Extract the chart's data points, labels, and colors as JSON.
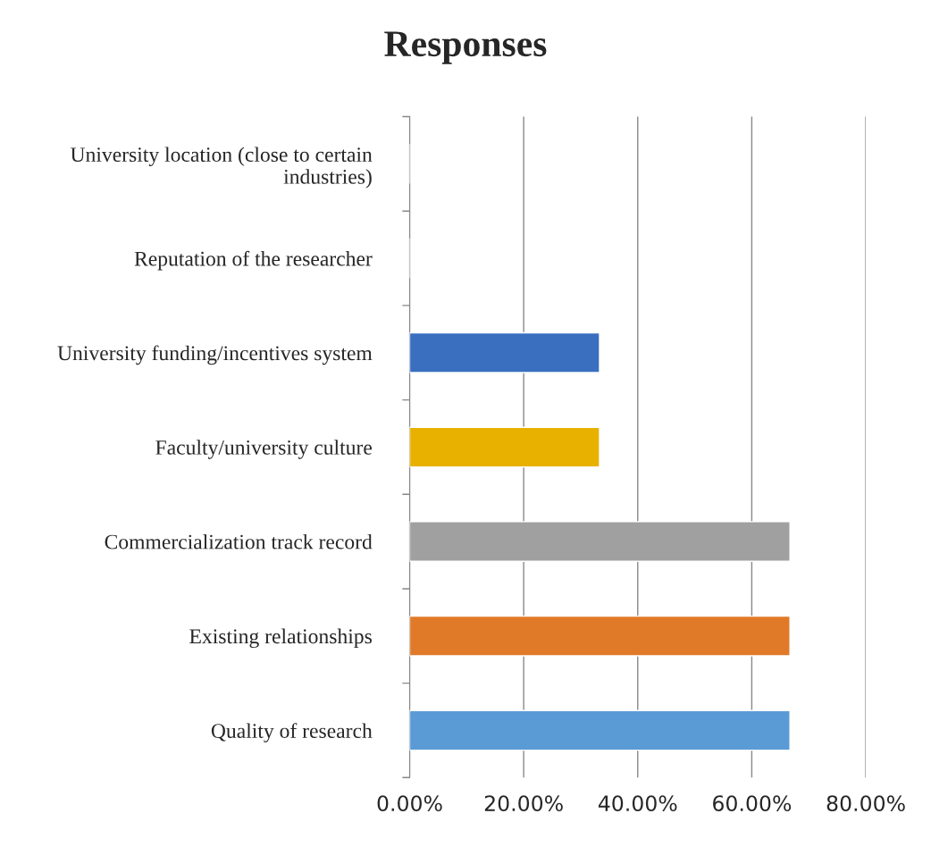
{
  "chart_data": {
    "type": "bar",
    "orientation": "horizontal",
    "title": "Responses",
    "categories": [
      "University location (close to certain industries)",
      "Reputation of the researcher",
      "University funding/incentives system",
      "Faculty/university culture",
      "Commercialization track record",
      "Existing relationships",
      "Quality of research"
    ],
    "values": [
      0,
      0,
      33.3,
      33.3,
      66.7,
      66.7,
      66.7
    ],
    "colors": [
      null,
      null,
      "#3a6fbf",
      "#e8b100",
      "#a0a0a0",
      "#e07a28",
      "#5b9bd5"
    ],
    "xlim": [
      0,
      80
    ],
    "xticks": [
      {
        "value": 0,
        "label": "0.00%"
      },
      {
        "value": 20,
        "label": "20.00%"
      },
      {
        "value": 40,
        "label": "40.00%"
      },
      {
        "value": 60,
        "label": "60.00%"
      },
      {
        "value": 80,
        "label": "80.00%"
      }
    ],
    "grid": "x"
  }
}
